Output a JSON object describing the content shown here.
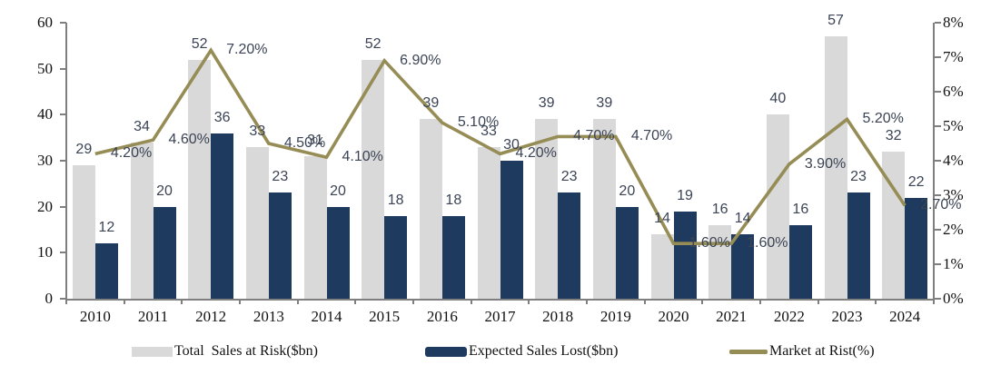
{
  "chart_data": {
    "type": "bar",
    "subtype": "clustered-bars-with-line-overlay",
    "categories": [
      "2010",
      "2011",
      "2012",
      "2013",
      "2014",
      "2015",
      "2016",
      "2017",
      "2018",
      "2019",
      "2020",
      "2021",
      "2022",
      "2023",
      "2024"
    ],
    "series": [
      {
        "name": "Total  Sales at Risk($bn)",
        "type": "bar",
        "axis": "left",
        "color": "#d9d9d9",
        "values": [
          29,
          34,
          52,
          33,
          31,
          52,
          39,
          33,
          39,
          39,
          14,
          16,
          40,
          57,
          32
        ]
      },
      {
        "name": "Expected Sales Lost($bn)",
        "type": "bar",
        "axis": "left",
        "color": "#1e3a5f",
        "values": [
          12,
          20,
          36,
          23,
          20,
          18,
          18,
          30,
          23,
          20,
          19,
          14,
          16,
          23,
          22
        ]
      },
      {
        "name": "Market at Rist(%)",
        "type": "line",
        "axis": "right",
        "color": "#968c55",
        "values": [
          4.2,
          4.6,
          7.2,
          4.5,
          4.1,
          6.9,
          5.1,
          4.2,
          4.7,
          4.7,
          1.6,
          1.6,
          3.9,
          5.2,
          2.7
        ]
      }
    ],
    "left_axis": {
      "min": 0,
      "max": 60,
      "step": 10,
      "ticks": [
        "0",
        "10",
        "20",
        "30",
        "40",
        "50",
        "60"
      ]
    },
    "right_axis": {
      "min": 0,
      "max": 8,
      "step": 1,
      "ticks": [
        "0%",
        "1%",
        "2%",
        "3%",
        "4%",
        "5%",
        "6%",
        "7%",
        "8%"
      ]
    },
    "title": "",
    "xlabel": "",
    "ylabel": "",
    "grid": false,
    "legend_position": "bottom",
    "axis_color": "#7f7f7f",
    "data_label_color": "#3b4455"
  }
}
